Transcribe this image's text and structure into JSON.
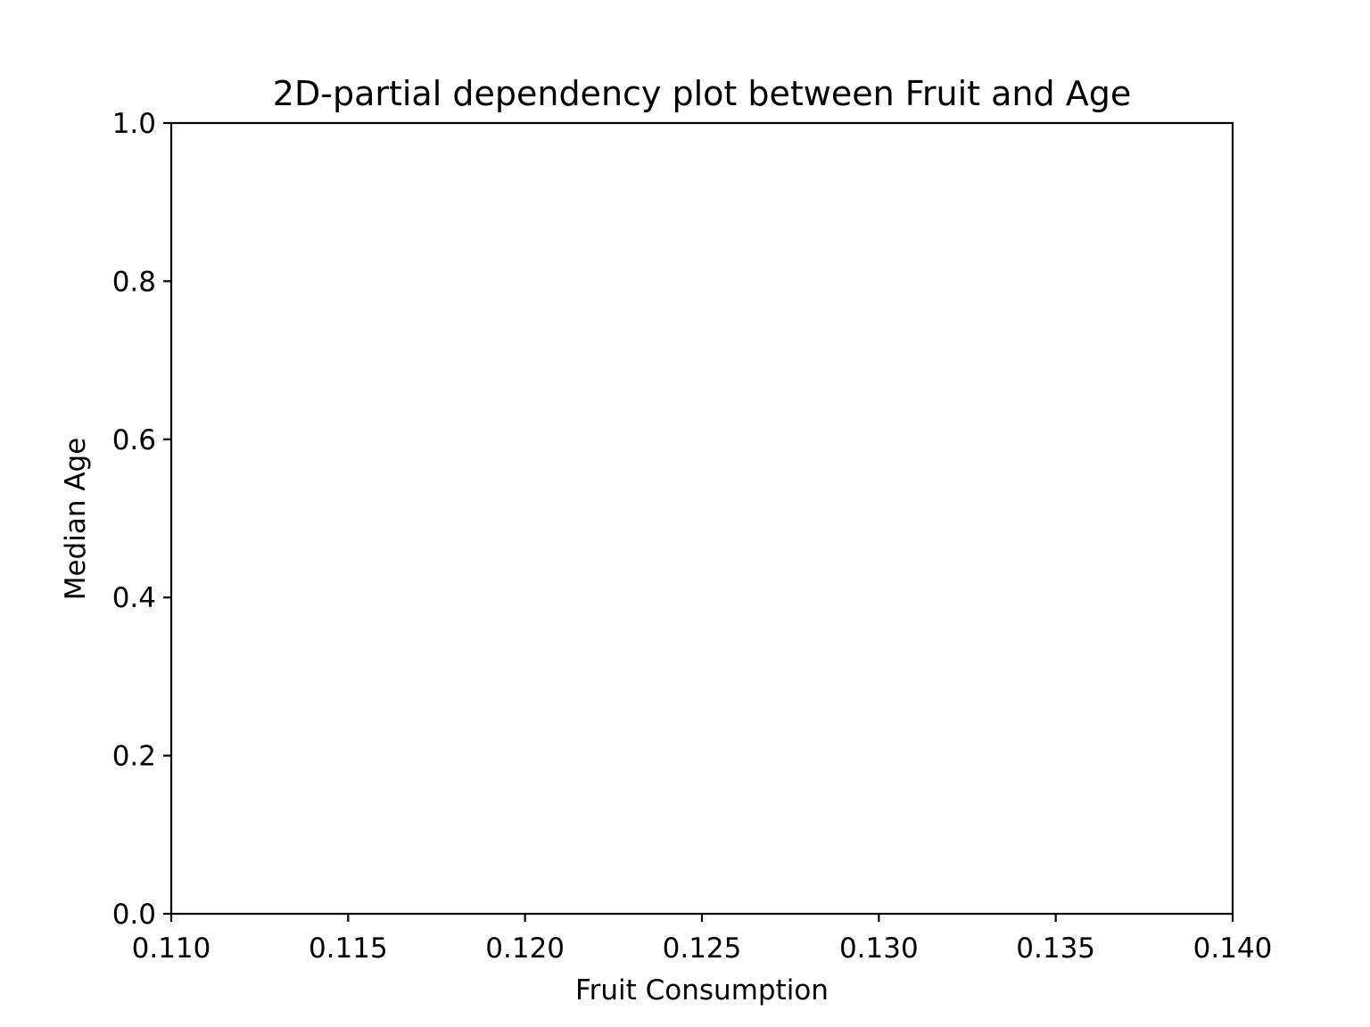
{
  "chart_data": {
    "type": "scatter",
    "title": "2D-partial dependency plot between Fruit and Age",
    "xlabel": "Fruit Consumption",
    "ylabel": "Median Age",
    "xlim": [
      0.11,
      0.14
    ],
    "ylim": [
      0.0,
      1.0
    ],
    "x_ticks": [
      {
        "value": 0.11,
        "label": "0.110"
      },
      {
        "value": 0.115,
        "label": "0.115"
      },
      {
        "value": 0.12,
        "label": "0.120"
      },
      {
        "value": 0.125,
        "label": "0.125"
      },
      {
        "value": 0.13,
        "label": "0.130"
      },
      {
        "value": 0.135,
        "label": "0.135"
      },
      {
        "value": 0.14,
        "label": "0.140"
      }
    ],
    "y_ticks": [
      {
        "value": 0.0,
        "label": "0.0"
      },
      {
        "value": 0.2,
        "label": "0.2"
      },
      {
        "value": 0.4,
        "label": "0.4"
      },
      {
        "value": 0.6,
        "label": "0.6"
      },
      {
        "value": 0.8,
        "label": "0.8"
      },
      {
        "value": 1.0,
        "label": "1.0"
      }
    ],
    "series": [],
    "grid": false,
    "legend": "none"
  }
}
